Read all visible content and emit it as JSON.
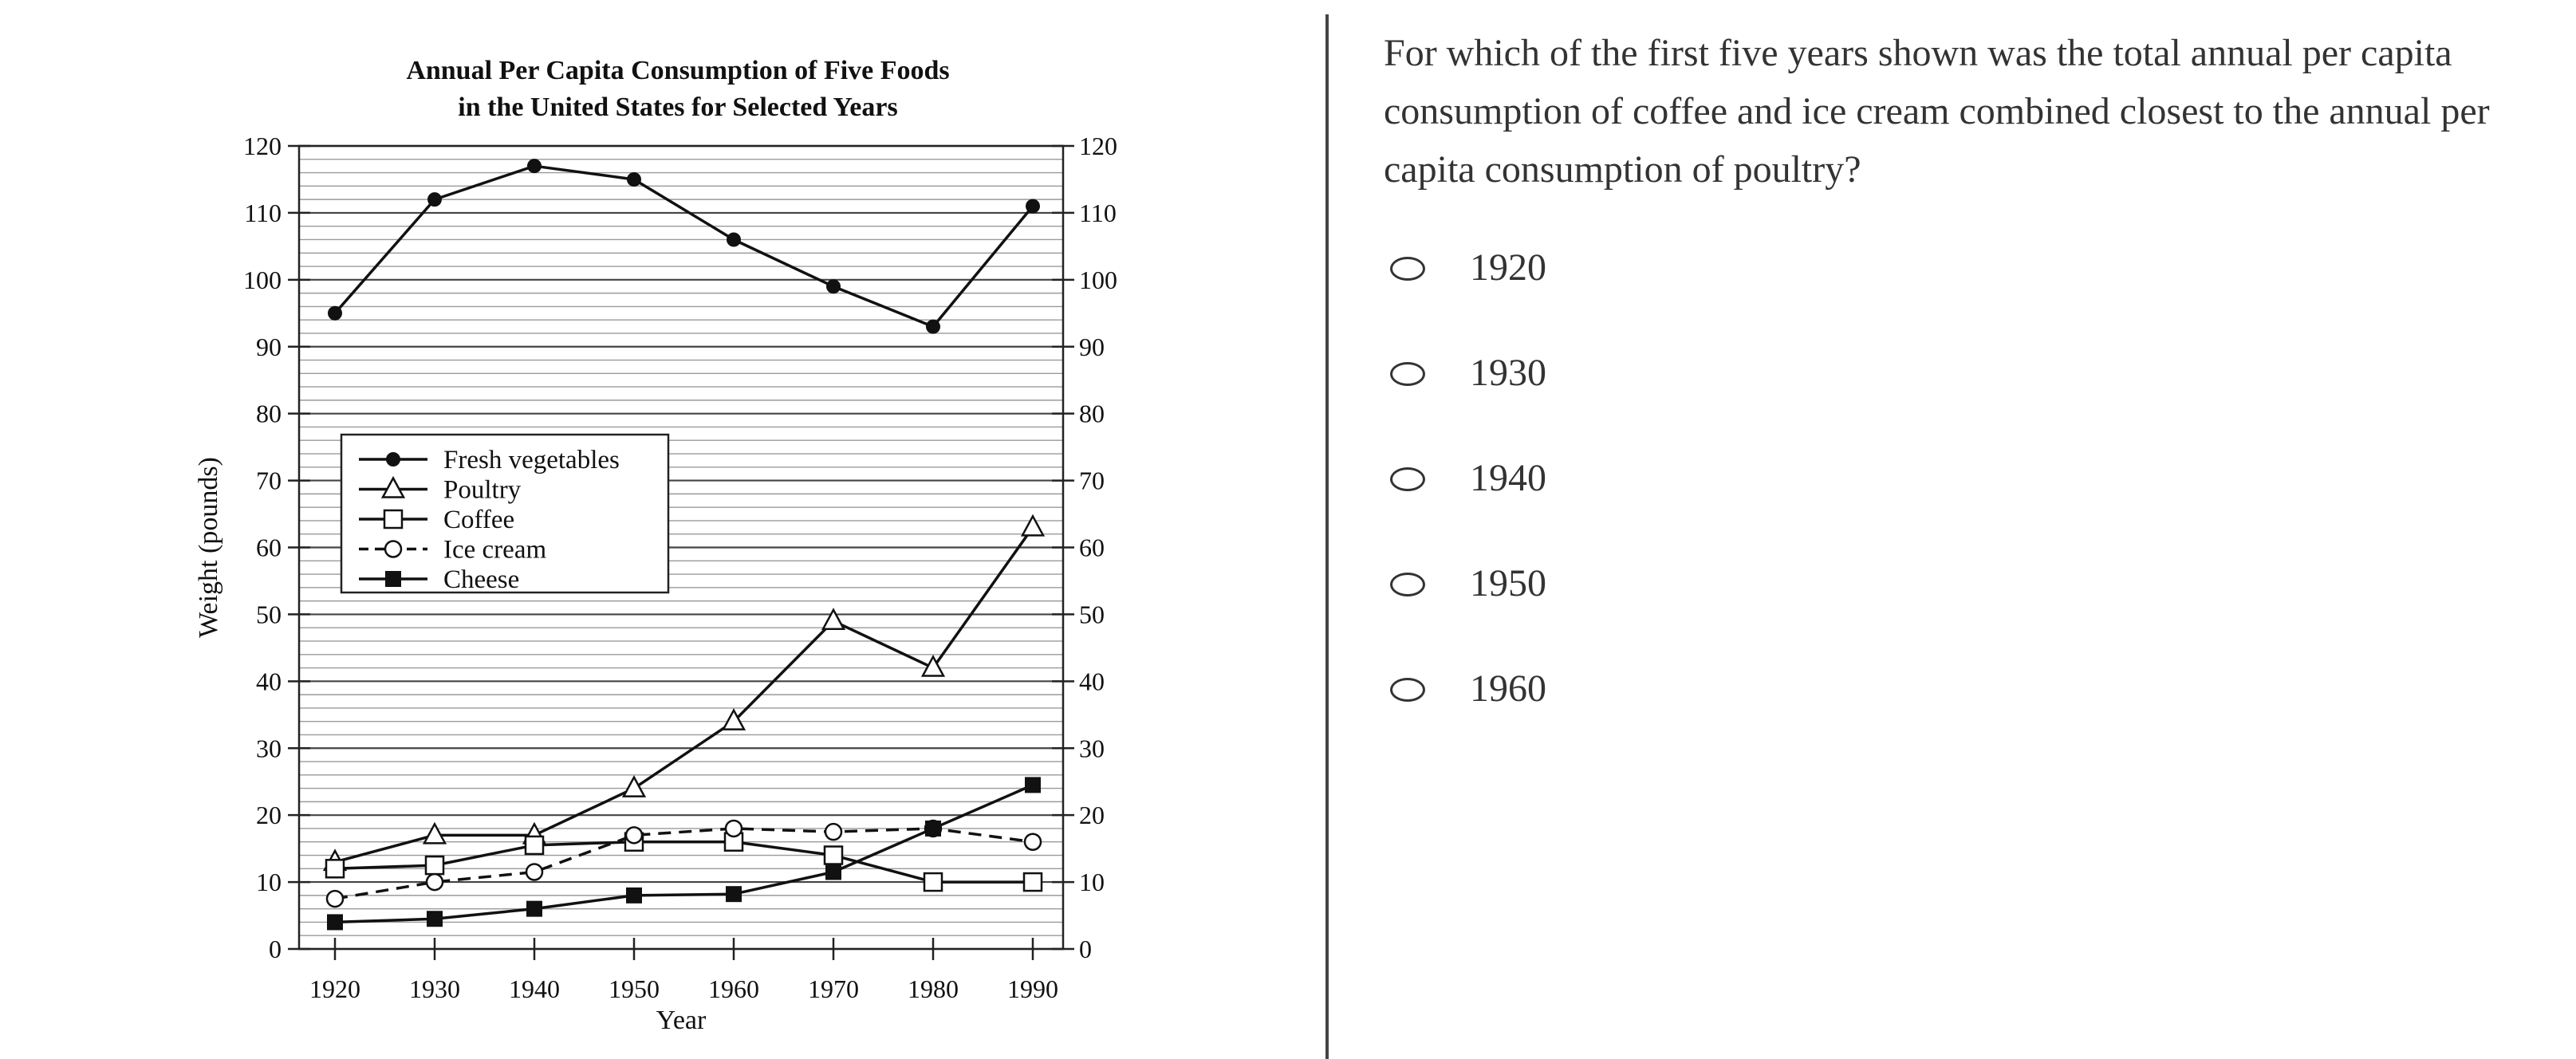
{
  "question": {
    "text": "For which of the first five years shown was the total annual per capita consumption of coffee and ice cream combined closest to the annual per capita consumption of poultry?",
    "options": [
      "1920",
      "1930",
      "1940",
      "1950",
      "1960"
    ]
  },
  "chart_data": {
    "type": "line",
    "title": "Annual Per Capita Consumption of Five Foods",
    "title_line2": "in the United States for Selected Years",
    "xlabel": "Year",
    "ylabel": "Weight (pounds)",
    "ylim": [
      0,
      120
    ],
    "y_ticks": [
      0,
      10,
      20,
      30,
      40,
      50,
      60,
      70,
      80,
      90,
      100,
      110,
      120
    ],
    "x": [
      "1920",
      "1930",
      "1940",
      "1950",
      "1960",
      "1970",
      "1980",
      "1990"
    ],
    "grid": true,
    "legend_position": "middle-left",
    "series": [
      {
        "name": "Fresh vegetables",
        "marker": "filled-circle",
        "line": "solid",
        "values": [
          95,
          112,
          117,
          115,
          106,
          99,
          93,
          111
        ]
      },
      {
        "name": "Poultry",
        "marker": "open-triangle",
        "line": "solid",
        "values": [
          13,
          17,
          17,
          24,
          34,
          49,
          42,
          63
        ]
      },
      {
        "name": "Coffee",
        "marker": "open-square",
        "line": "solid",
        "values": [
          12,
          12.5,
          15.5,
          16,
          16,
          14,
          10,
          10
        ]
      },
      {
        "name": "Ice cream",
        "marker": "open-circle",
        "line": "dashed",
        "values": [
          7.5,
          10,
          11.5,
          17,
          18,
          17.5,
          18,
          16
        ]
      },
      {
        "name": "Cheese",
        "marker": "filled-square",
        "line": "solid",
        "values": [
          4,
          4.5,
          6,
          8,
          8.2,
          11.5,
          18,
          24.5
        ]
      }
    ]
  }
}
